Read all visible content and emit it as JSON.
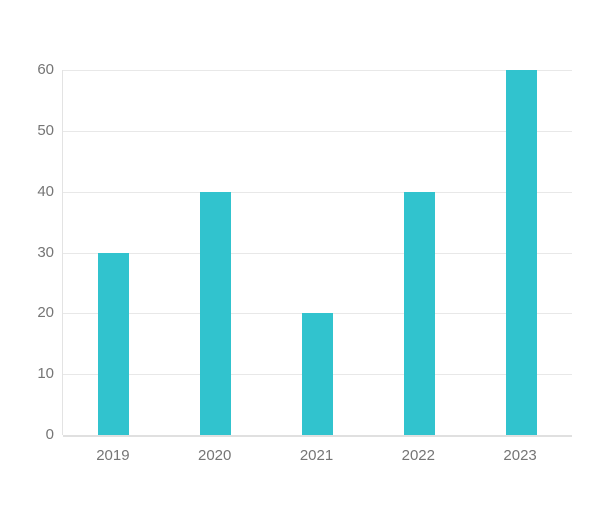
{
  "chart_data": {
    "type": "bar",
    "title": "",
    "xlabel": "",
    "ylabel": "",
    "categories": [
      "2019",
      "2020",
      "2021",
      "2022",
      "2023"
    ],
    "values": [
      30,
      40,
      20,
      40,
      60
    ],
    "ylim": [
      0,
      60
    ],
    "yticks": [
      0,
      10,
      20,
      30,
      40,
      50,
      60
    ],
    "grid": "horizontal-only",
    "legend": "none",
    "colors": {
      "bar": "#31c3ce",
      "gridline": "#e8e8e8",
      "axis_line": "#e3e3e3",
      "baseline": "#e0e0e0",
      "tick_label": "#757575"
    }
  }
}
